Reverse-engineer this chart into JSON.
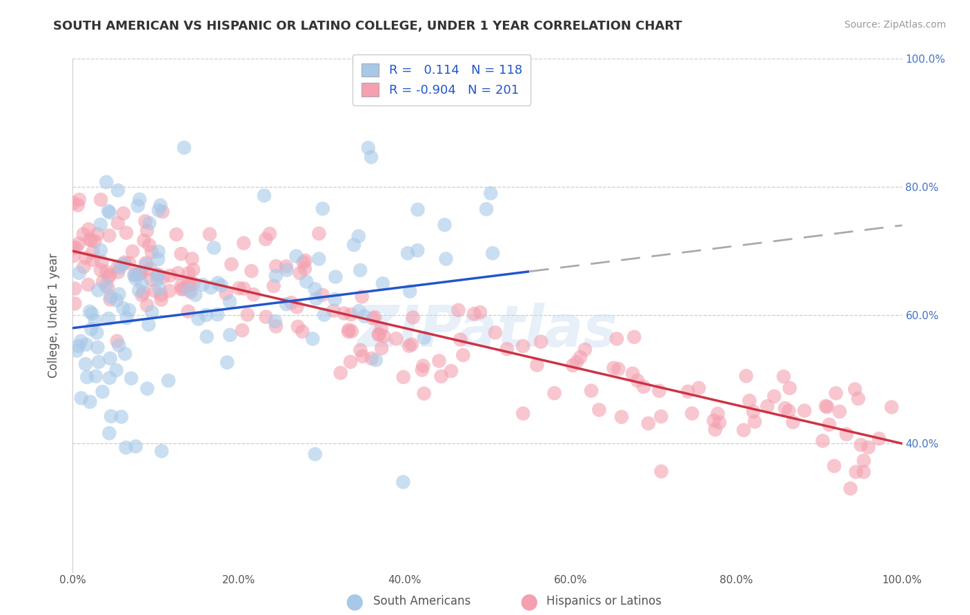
{
  "title": "SOUTH AMERICAN VS HISPANIC OR LATINO COLLEGE, UNDER 1 YEAR CORRELATION CHART",
  "source": "Source: ZipAtlas.com",
  "ylabel": "College, Under 1 year",
  "watermark": "ZIPatlas",
  "blue_label": "South Americans",
  "pink_label": "Hispanics or Latinos",
  "blue_R": 0.114,
  "blue_N": 118,
  "pink_R": -0.904,
  "pink_N": 201,
  "xlim": [
    0.0,
    100.0
  ],
  "ylim": [
    20.0,
    100.0
  ],
  "yticks": [
    40,
    60,
    80,
    100
  ],
  "xticks": [
    0,
    20,
    40,
    60,
    80,
    100
  ],
  "blue_color": "#a8c8e8",
  "pink_color": "#f4a0b0",
  "blue_line_color": "#2255cc",
  "pink_line_color": "#cc3344",
  "dashed_line_color": "#aaaaaa",
  "background_color": "#ffffff",
  "grid_color": "#cccccc",
  "title_color": "#333333",
  "tick_color": "#555555",
  "blue_solid_x_max": 55.0,
  "blue_line_y0": 58.0,
  "blue_line_y100": 74.0,
  "pink_line_y0": 70.0,
  "pink_line_y100": 40.0
}
